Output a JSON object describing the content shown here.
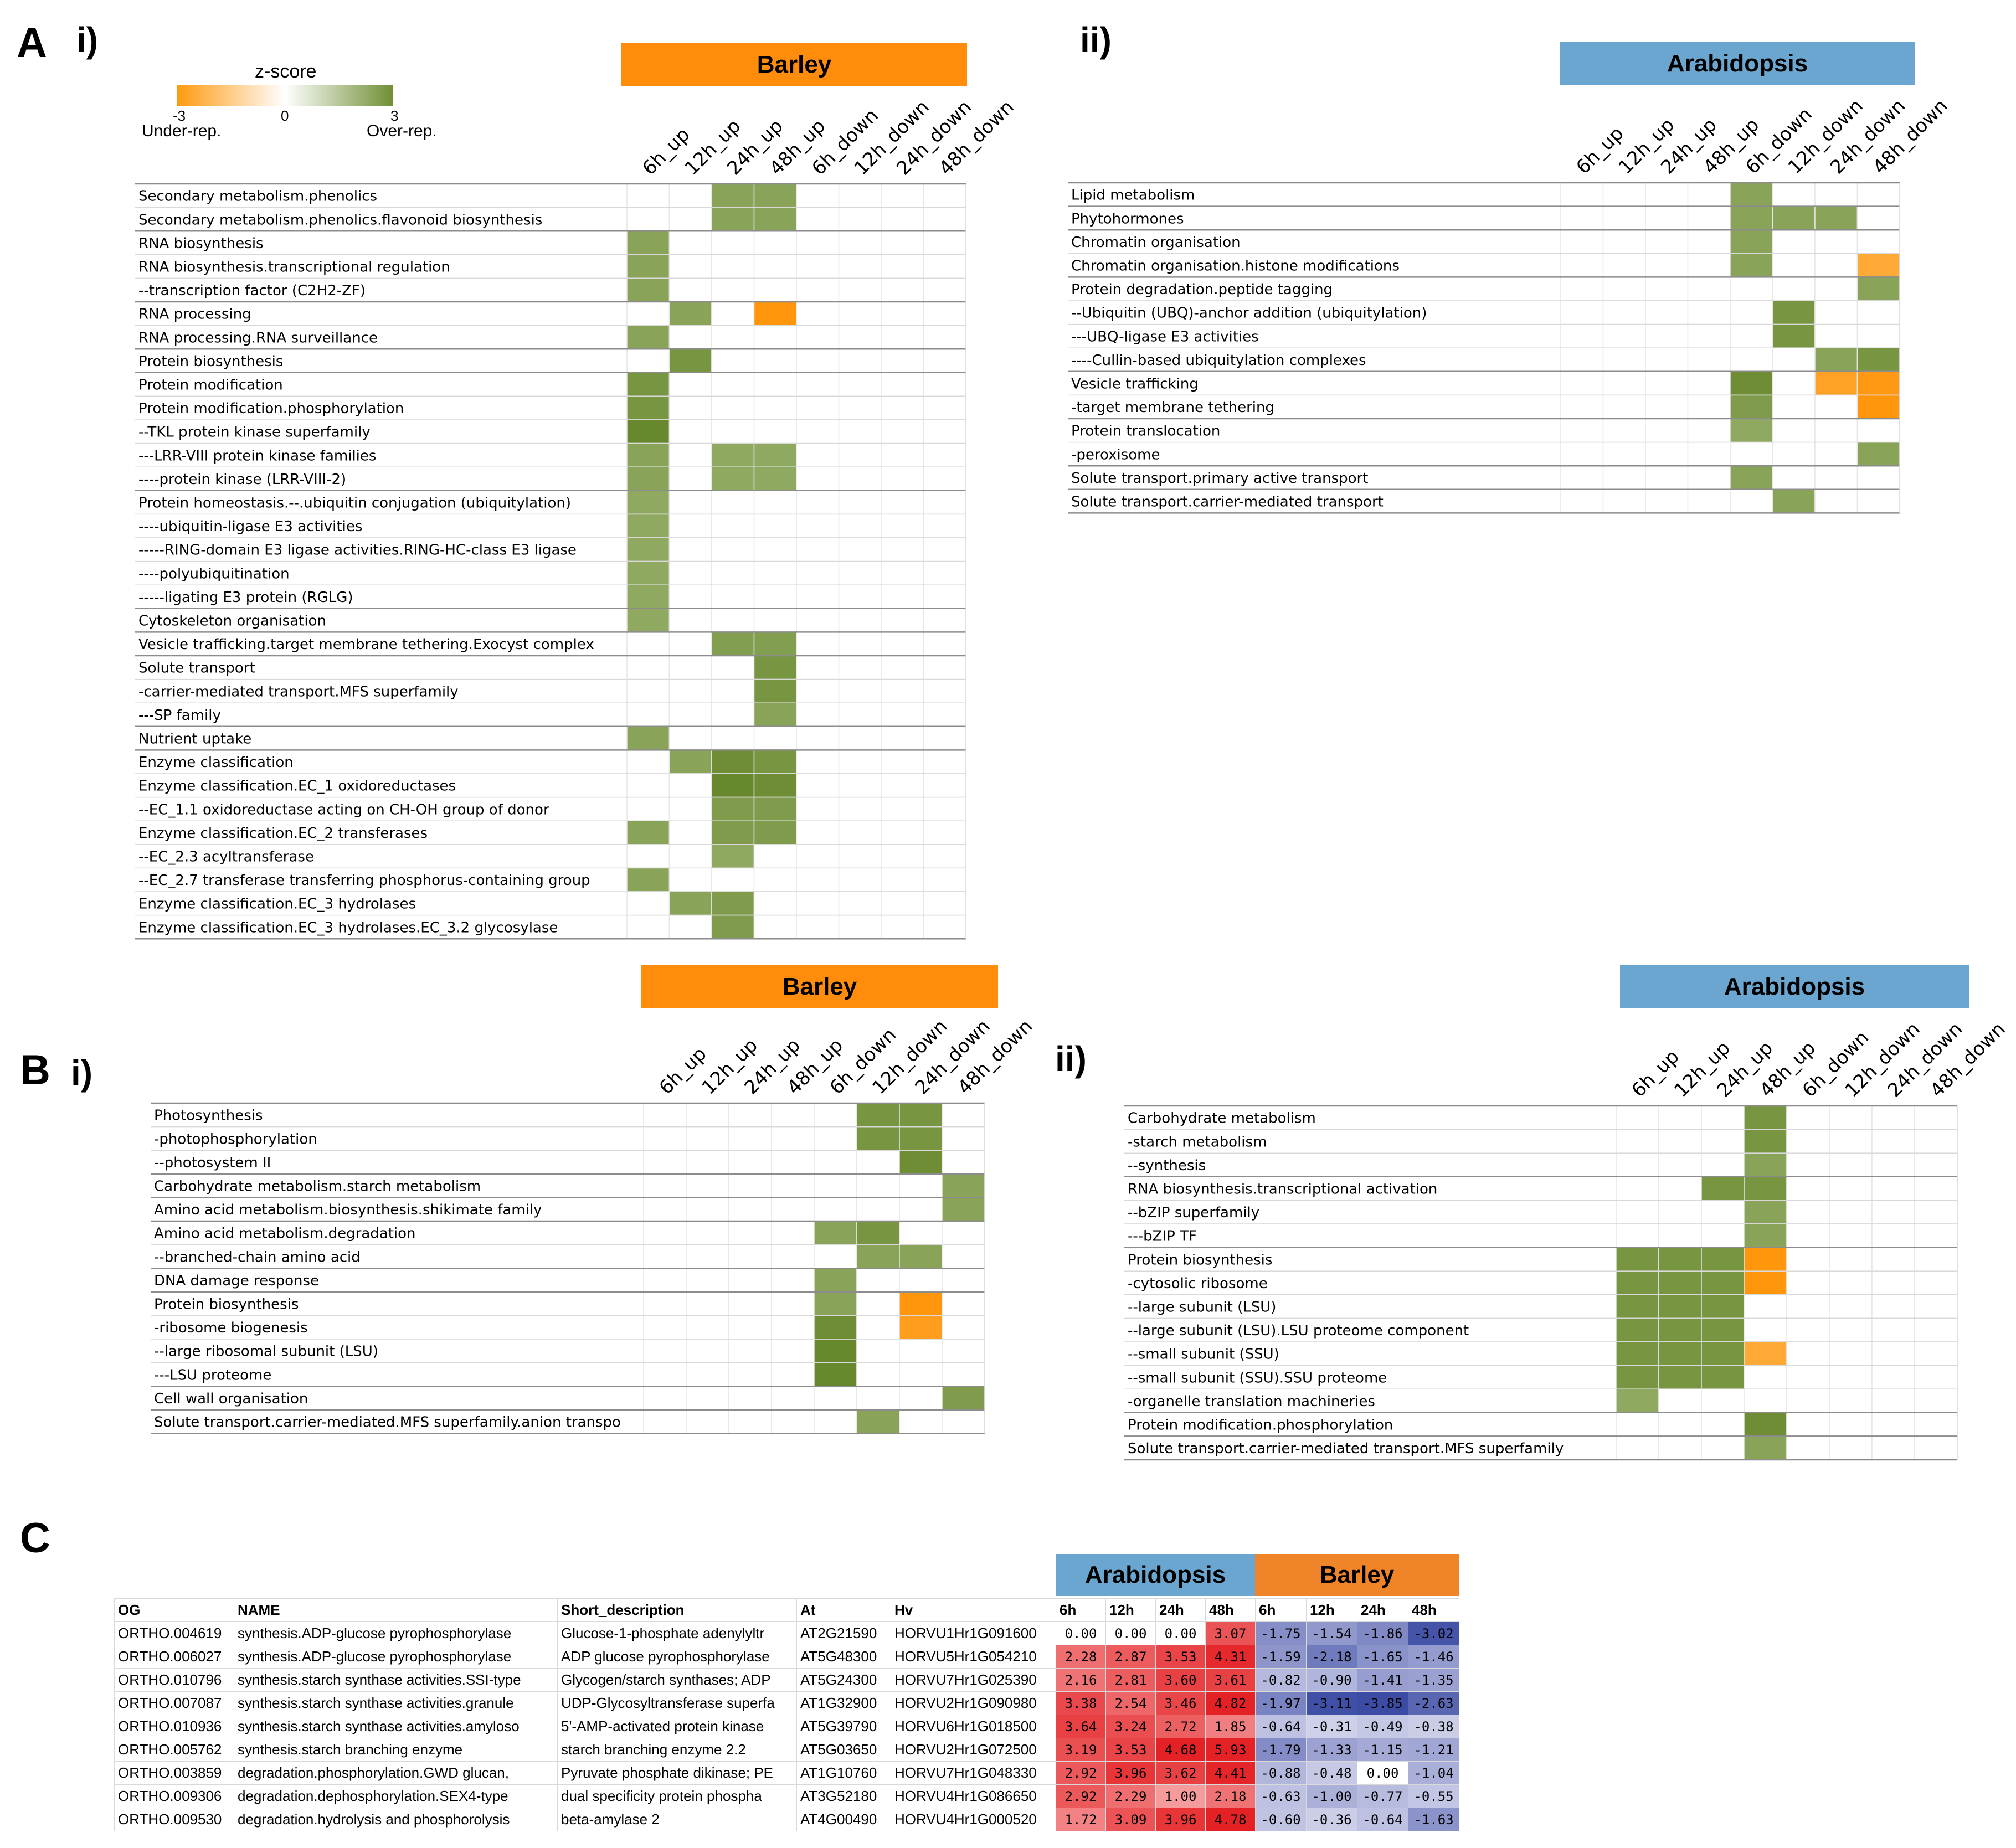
{
  "labels": {
    "panel_A": "A",
    "panel_B": "B",
    "panel_C": "C",
    "roman_i": "i)",
    "roman_ii": "ii)",
    "barley": "Barley",
    "arabidopsis": "Arabidopsis"
  },
  "legend": {
    "title": "z-score",
    "min": "-3",
    "mid": "0",
    "max": "3",
    "under": "Under-rep.",
    "over": "Over-rep."
  },
  "colors": {
    "barley_banner": "#ff8c0a",
    "arabidopsis_banner": "#6aa6d0",
    "over_strong": "#6f8f34",
    "over_mid": "#8aa550",
    "over_light": "#a3ba72",
    "under_strong": "#ff9a10",
    "under_light": "#ffb347",
    "red": "#e3282c",
    "blue": "#4452a8"
  },
  "chart_data": [
    {
      "type": "heatmap",
      "panel": "A i)",
      "title": "Barley",
      "columns": [
        "6h_up",
        "12h_up",
        "24h_up",
        "48h_up",
        "6h_down",
        "12h_down",
        "24h_down",
        "48h_down"
      ],
      "rows": [
        "Secondary metabolism.phenolics",
        "Secondary metabolism.phenolics.flavonoid biosynthesis",
        "RNA biosynthesis",
        "RNA biosynthesis.transcriptional regulation",
        "--transcription factor (C2H2-ZF)",
        "RNA processing",
        "RNA processing.RNA surveillance",
        "Protein biosynthesis",
        "Protein modification",
        "Protein modification.phosphorylation",
        "--TKL protein kinase superfamily",
        "---LRR-VIII protein kinase families",
        "----protein kinase (LRR-VIII-2)",
        "Protein homeostasis.--.ubiquitin conjugation (ubiquitylation)",
        "----ubiquitin-ligase E3 activities",
        "-----RING-domain E3 ligase activities.RING-HC-class E3 ligase",
        "----polyubiquitination",
        "-----ligating E3 protein (RGLG)",
        "Cytoskeleton organisation",
        "Vesicle trafficking.target membrane tethering.Exocyst complex",
        "Solute transport",
        "-carrier-mediated transport.MFS superfamily",
        "---SP family",
        "Nutrient uptake",
        "Enzyme classification",
        "Enzyme classification.EC_1 oxidoreductases",
        "--EC_1.1 oxidoreductase acting on CH-OH group of donor",
        "Enzyme classification.EC_2 transferases",
        "--EC_2.3 acyltransferase",
        "--EC_2.7 transferase transferring phosphorus-containing group",
        "Enzyme classification.EC_3 hydrolases",
        "Enzyme classification.EC_3 hydrolases.EC_3.2 glycosylase"
      ],
      "group_breaks": [
        2,
        5,
        7,
        8,
        13,
        18,
        19,
        20,
        23,
        24
      ],
      "values": [
        [
          0,
          0,
          2,
          2,
          0,
          0,
          0,
          0
        ],
        [
          0,
          0,
          2,
          2,
          0,
          0,
          0,
          0
        ],
        [
          2,
          0,
          0,
          0,
          0,
          0,
          0,
          0
        ],
        [
          2,
          0,
          0,
          0,
          0,
          0,
          0,
          0
        ],
        [
          2,
          0,
          0,
          0,
          0,
          0,
          0,
          0
        ],
        [
          0,
          2,
          0,
          -3,
          0,
          0,
          0,
          0
        ],
        [
          2,
          0,
          0,
          0,
          0,
          0,
          0,
          0
        ],
        [
          0,
          2.5,
          0,
          0,
          0,
          0,
          0,
          0
        ],
        [
          2.5,
          0,
          0,
          0,
          0,
          0,
          0,
          0
        ],
        [
          2.5,
          0,
          0,
          0,
          0,
          0,
          0,
          0
        ],
        [
          3,
          0,
          0,
          0,
          0,
          0,
          0,
          0
        ],
        [
          2,
          0,
          1.8,
          1.8,
          0,
          0,
          0,
          0
        ],
        [
          2,
          0,
          1.8,
          1.8,
          0,
          0,
          0,
          0
        ],
        [
          1.8,
          0,
          0,
          0,
          0,
          0,
          0,
          0
        ],
        [
          1.8,
          0,
          0,
          0,
          0,
          0,
          0,
          0
        ],
        [
          1.8,
          0,
          0,
          0,
          0,
          0,
          0,
          0
        ],
        [
          1.8,
          0,
          0,
          0,
          0,
          0,
          0,
          0
        ],
        [
          1.8,
          0,
          0,
          0,
          0,
          0,
          0,
          0
        ],
        [
          1.8,
          0,
          0,
          0,
          0,
          0,
          0,
          0
        ],
        [
          0,
          0,
          2.2,
          2.2,
          0,
          0,
          0,
          0
        ],
        [
          0,
          0,
          0,
          2.5,
          0,
          0,
          0,
          0
        ],
        [
          0,
          0,
          0,
          2.5,
          0,
          0,
          0,
          0
        ],
        [
          0,
          0,
          0,
          2,
          0,
          0,
          0,
          0
        ],
        [
          2,
          0,
          0,
          0,
          0,
          0,
          0,
          0
        ],
        [
          0,
          2,
          2.8,
          2.5,
          0,
          0,
          0,
          0
        ],
        [
          0,
          0,
          3,
          2.8,
          0,
          0,
          0,
          0
        ],
        [
          0,
          0,
          2.3,
          2.3,
          0,
          0,
          0,
          0
        ],
        [
          2,
          0,
          2.3,
          2.3,
          0,
          0,
          0,
          0
        ],
        [
          0,
          0,
          1.8,
          0,
          0,
          0,
          0,
          0
        ],
        [
          2,
          0,
          0,
          0,
          0,
          0,
          0,
          0
        ],
        [
          0,
          2,
          2.3,
          0,
          0,
          0,
          0,
          0
        ],
        [
          0,
          0,
          2.3,
          0,
          0,
          0,
          0,
          0
        ]
      ]
    },
    {
      "type": "heatmap",
      "panel": "A ii)",
      "title": "Arabidopsis",
      "columns": [
        "6h_up",
        "12h_up",
        "24h_up",
        "48h_up",
        "6h_down",
        "12h_down",
        "24h_down",
        "48h_down"
      ],
      "rows": [
        "Lipid metabolism",
        "Phytohormones",
        "Chromatin organisation",
        "Chromatin organisation.histone modifications",
        "Protein degradation.peptide tagging",
        "--Ubiquitin (UBQ)-anchor addition (ubiquitylation)",
        "---UBQ-ligase E3 activities",
        "----Cullin-based ubiquitylation complexes",
        "Vesicle trafficking",
        "-target membrane tethering",
        "Protein translocation",
        "-peroxisome",
        "Solute transport.primary active transport",
        "Solute transport.carrier-mediated transport"
      ],
      "group_breaks": [
        1,
        2,
        4,
        8,
        10,
        12,
        13
      ],
      "values": [
        [
          0,
          0,
          0,
          0,
          2,
          0,
          0,
          0
        ],
        [
          0,
          0,
          0,
          0,
          2,
          2,
          2,
          0
        ],
        [
          0,
          0,
          0,
          0,
          2,
          0,
          0,
          0
        ],
        [
          0,
          0,
          0,
          0,
          2,
          0,
          0,
          -1.8
        ],
        [
          0,
          0,
          0,
          0,
          0,
          0,
          0,
          2
        ],
        [
          0,
          0,
          0,
          0,
          0,
          2.5,
          0,
          0
        ],
        [
          0,
          0,
          0,
          0,
          0,
          2.5,
          0,
          0
        ],
        [
          0,
          0,
          0,
          0,
          0,
          0,
          2,
          2.5
        ],
        [
          0,
          0,
          0,
          0,
          2.8,
          0,
          -2.3,
          -2.8
        ],
        [
          0,
          0,
          0,
          0,
          2.3,
          0,
          0,
          -3
        ],
        [
          0,
          0,
          0,
          0,
          1.8,
          0,
          0,
          0
        ],
        [
          0,
          0,
          0,
          0,
          0,
          0,
          0,
          2
        ],
        [
          0,
          0,
          0,
          0,
          2,
          0,
          0,
          0
        ],
        [
          0,
          0,
          0,
          0,
          0,
          2,
          0,
          0
        ]
      ]
    },
    {
      "type": "heatmap",
      "panel": "B i)",
      "title": "Barley",
      "columns": [
        "6h_up",
        "12h_up",
        "24h_up",
        "48h_up",
        "6h_down",
        "12h_down",
        "24h_down",
        "48h_down"
      ],
      "rows": [
        "Photosynthesis",
        "-photophosphorylation",
        "--photosystem II",
        "Carbohydrate metabolism.starch metabolism",
        "Amino acid metabolism.biosynthesis.shikimate family",
        "Amino acid metabolism.degradation",
        "--branched-chain amino acid",
        "DNA damage response",
        "Protein biosynthesis",
        "-ribosome biogenesis",
        "--large ribosomal subunit (LSU)",
        "---LSU proteome",
        "Cell wall organisation",
        "Solute transport.carrier-mediated.MFS superfamily.anion transpo"
      ],
      "group_breaks": [
        3,
        4,
        5,
        7,
        8,
        12,
        13
      ],
      "values": [
        [
          0,
          0,
          0,
          0,
          0,
          2.5,
          2.5,
          0
        ],
        [
          0,
          0,
          0,
          0,
          0,
          2.5,
          2.5,
          0
        ],
        [
          0,
          0,
          0,
          0,
          0,
          0,
          2.8,
          0
        ],
        [
          0,
          0,
          0,
          0,
          0,
          0,
          0,
          2
        ],
        [
          0,
          0,
          0,
          0,
          0,
          0,
          0,
          2
        ],
        [
          0,
          0,
          0,
          0,
          2,
          2.5,
          0,
          0
        ],
        [
          0,
          0,
          0,
          0,
          0,
          2,
          2,
          0
        ],
        [
          0,
          0,
          0,
          0,
          2,
          0,
          0,
          0
        ],
        [
          0,
          0,
          0,
          0,
          2,
          0,
          -3,
          0
        ],
        [
          0,
          0,
          0,
          0,
          2.8,
          0,
          -2.5,
          0
        ],
        [
          0,
          0,
          0,
          0,
          3,
          0,
          0,
          0
        ],
        [
          0,
          0,
          0,
          0,
          3,
          0,
          0,
          0
        ],
        [
          0,
          0,
          0,
          0,
          0,
          0,
          0,
          2.3
        ],
        [
          0,
          0,
          0,
          0,
          0,
          2,
          0,
          0
        ]
      ]
    },
    {
      "type": "heatmap",
      "panel": "B ii)",
      "title": "Arabidopsis",
      "columns": [
        "6h_up",
        "12h_up",
        "24h_up",
        "48h_up",
        "6h_down",
        "12h_down",
        "24h_down",
        "48h_down"
      ],
      "rows": [
        "Carbohydrate metabolism",
        "-starch metabolism",
        "--synthesis",
        "RNA biosynthesis.transcriptional activation",
        "--bZIP superfamily",
        "---bZIP TF",
        "Protein biosynthesis",
        "-cytosolic ribosome",
        "--large subunit (LSU)",
        "--large subunit (LSU).LSU proteome component",
        "--small subunit (SSU)",
        "--small subunit (SSU).SSU proteome",
        "-organelle translation machineries",
        "Protein modification.phosphorylation",
        "Solute transport.carrier-mediated transport.MFS superfamily"
      ],
      "group_breaks": [
        3,
        6,
        13,
        14
      ],
      "values": [
        [
          0,
          0,
          0,
          2.5,
          0,
          0,
          0,
          0
        ],
        [
          0,
          0,
          0,
          2.5,
          0,
          0,
          0,
          0
        ],
        [
          0,
          0,
          0,
          2,
          0,
          0,
          0,
          0
        ],
        [
          0,
          0,
          2.5,
          2.5,
          0,
          0,
          0,
          0
        ],
        [
          0,
          0,
          0,
          2,
          0,
          0,
          0,
          0
        ],
        [
          0,
          0,
          0,
          2,
          0,
          0,
          0,
          0
        ],
        [
          2.5,
          2.5,
          2.5,
          -3,
          0,
          0,
          0,
          0
        ],
        [
          2.5,
          2.5,
          2.5,
          -3,
          0,
          0,
          0,
          0
        ],
        [
          2.5,
          2.5,
          2.5,
          0,
          0,
          0,
          0,
          0
        ],
        [
          2.5,
          2.5,
          2.5,
          0,
          0,
          0,
          0,
          0
        ],
        [
          2.5,
          2.5,
          2.5,
          -1.8,
          0,
          0,
          0,
          0
        ],
        [
          2.5,
          2.5,
          2.5,
          0,
          0,
          0,
          0,
          0
        ],
        [
          1.8,
          0,
          0,
          0,
          0,
          0,
          0,
          0
        ],
        [
          0,
          0,
          0,
          2.8,
          0,
          0,
          0,
          0
        ],
        [
          0,
          0,
          0,
          2,
          0,
          0,
          0,
          0
        ]
      ]
    },
    {
      "type": "table",
      "panel": "C",
      "headers": [
        "OG",
        "NAME",
        "Short_description",
        "At",
        "Hv",
        "6h",
        "12h",
        "24h",
        "48h",
        "6h",
        "12h",
        "24h",
        "48h"
      ],
      "group_headers": [
        {
          "label": "Arabidopsis",
          "span": 4
        },
        {
          "label": "Barley",
          "span": 4
        }
      ],
      "rows": [
        [
          "ORTHO.004619",
          "synthesis.ADP-glucose pyrophosphorylase",
          "Glucose-1-phosphate adenylyltr",
          "AT2G21590",
          "HORVU1Hr1G091600",
          "0.00",
          "0.00",
          "0.00",
          "3.07",
          "-1.75",
          "-1.54",
          "-1.86",
          "-3.02"
        ],
        [
          "ORTHO.006027",
          "synthesis.ADP-glucose pyrophosphorylase",
          "ADP glucose pyrophosphorylase",
          "AT5G48300",
          "HORVU5Hr1G054210",
          "2.28",
          "2.87",
          "3.53",
          "4.31",
          "-1.59",
          "-2.18",
          "-1.65",
          "-1.46"
        ],
        [
          "ORTHO.010796",
          "synthesis.starch synthase activities.SSI-type",
          "Glycogen/starch synthases; ADP",
          "AT5G24300",
          "HORVU7Hr1G025390",
          "2.16",
          "2.81",
          "3.60",
          "3.61",
          "-0.82",
          "-0.90",
          "-1.41",
          "-1.35"
        ],
        [
          "ORTHO.007087",
          "synthesis.starch synthase activities.granule",
          "UDP-Glycosyltransferase superfa",
          "AT1G32900",
          "HORVU2Hr1G090980",
          "3.38",
          "2.54",
          "3.46",
          "4.82",
          "-1.97",
          "-3.11",
          "-3.85",
          "-2.63"
        ],
        [
          "ORTHO.010936",
          "synthesis.starch synthase activities.amyloso",
          "5'-AMP-activated protein kinase",
          "AT5G39790",
          "HORVU6Hr1G018500",
          "3.64",
          "3.24",
          "2.72",
          "1.85",
          "-0.64",
          "-0.31",
          "-0.49",
          "-0.38"
        ],
        [
          "ORTHO.005762",
          "synthesis.starch branching enzyme",
          "starch branching enzyme 2.2",
          "AT5G03650",
          "HORVU2Hr1G072500",
          "3.19",
          "3.53",
          "4.68",
          "5.93",
          "-1.79",
          "-1.33",
          "-1.15",
          "-1.21"
        ],
        [
          "ORTHO.003859",
          "degradation.phosphorylation.GWD glucan,",
          "Pyruvate phosphate dikinase; PE",
          "AT1G10760",
          "HORVU7Hr1G048330",
          "2.92",
          "3.96",
          "3.62",
          "4.41",
          "-0.88",
          "-0.48",
          "0.00",
          "-1.04"
        ],
        [
          "ORTHO.009306",
          "degradation.dephosphorylation.SEX4-type",
          "dual specificity protein phospha",
          "AT3G52180",
          "HORVU4Hr1G086650",
          "2.92",
          "2.29",
          "1.00",
          "2.18",
          "-0.63",
          "-1.00",
          "-0.77",
          "-0.55"
        ],
        [
          "ORTHO.009530",
          "degradation.hydrolysis and phosphorolysis",
          "beta-amylase 2",
          "AT4G00490",
          "HORVU4Hr1G000520",
          "1.72",
          "3.09",
          "3.96",
          "4.78",
          "-0.60",
          "-0.36",
          "-0.64",
          "-1.63"
        ]
      ]
    }
  ]
}
